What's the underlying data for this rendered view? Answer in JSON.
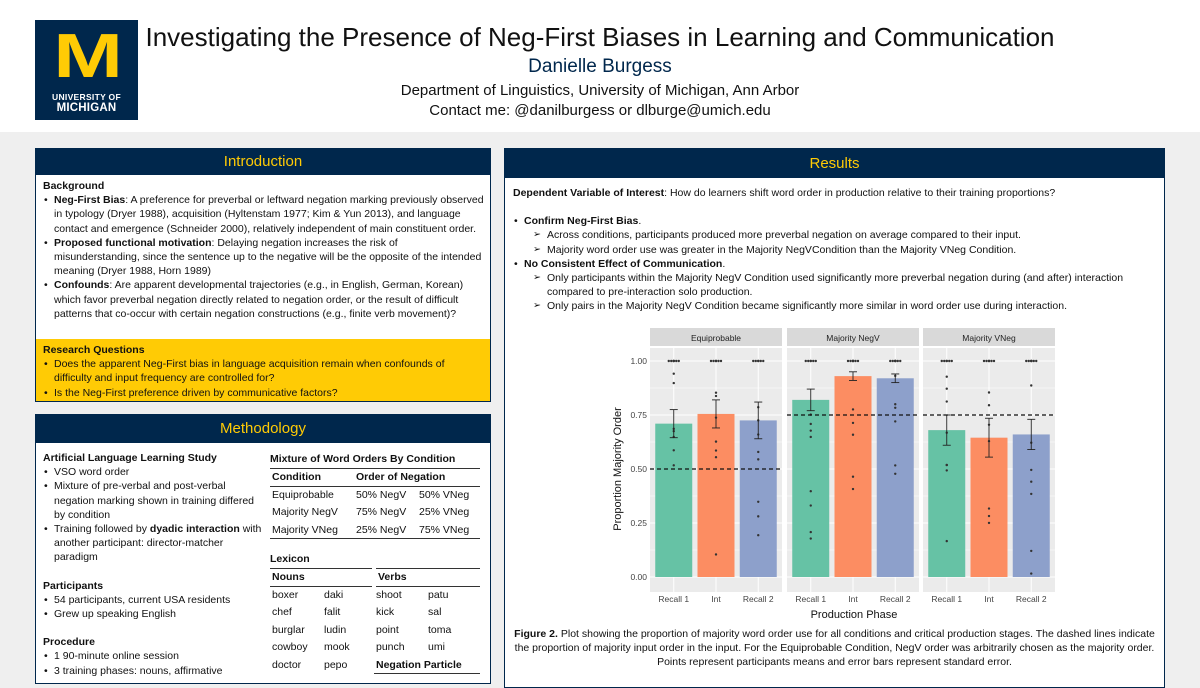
{
  "header": {
    "logo_top": "M",
    "logo_line1": "UNIVERSITY OF",
    "logo_line2": "MICHIGAN",
    "title": "Investigating the Presence of Neg-First Biases in Learning and Communication",
    "author": "Danielle Burgess",
    "department": "Department of Linguistics, University of Michigan, Ann Arbor",
    "contact": "Contact me: @danilburgess or dlburge@umich.edu"
  },
  "colors": {
    "navy": "#00274c",
    "maize": "#ffcb05",
    "green": "#66c2a5",
    "orange": "#fc8d62",
    "blue": "#8da0cb"
  },
  "intro": {
    "heading": "Introduction",
    "background_label": "Background",
    "bullets": [
      {
        "bold": "Neg-First Bias",
        "text": ": A preference for preverbal or leftward negation marking previously observed in typology (Dryer 1988), acquisition (Hyltenstam 1977; Kim & Yun 2013), and language contact and emergence (Schneider 2000), relatively independent of main constituent order."
      },
      {
        "bold": "Proposed functional motivation",
        "text": ": Delaying negation increases the risk of misunderstanding, since the sentence up to the negative will be the opposite of the intended meaning (Dryer 1988, Horn 1989)"
      },
      {
        "bold": "Confounds",
        "text": ": Are apparent developmental trajectories (e.g., in English, German, Korean) which favor preverbal negation directly related to negation order, or the result of difficult patterns that co-occur with certain negation constructions (e.g., finite verb movement)?"
      }
    ],
    "rq_label": "Research Questions",
    "rq_items": [
      "Does the apparent Neg-First bias in language acquisition remain when confounds of difficulty and input frequency are controlled for?",
      "Is the Neg-First preference driven by communicative factors?"
    ]
  },
  "method": {
    "heading": "Methodology",
    "study_label": "Artificial Language Learning Study",
    "study_items": [
      {
        "pre": "VSO word order",
        "bold": "",
        "post": ""
      },
      {
        "pre": "Mixture of pre-verbal and post-verbal negation marking shown in training differed by condition",
        "bold": "",
        "post": ""
      },
      {
        "pre": "Training followed by ",
        "bold": "dyadic interaction",
        "post": " with another participant: director-matcher paradigm"
      }
    ],
    "participants_label": "Participants",
    "participants_items": [
      "54 participants, current USA residents",
      "Grew up speaking English"
    ],
    "procedure_label": "Procedure",
    "procedure_items": [
      "1 90-minute online session",
      "3 training phases: nouns, affirmative"
    ],
    "mix_title": "Mixture of Word Orders By Condition",
    "mix_headers": [
      "Condition",
      "Order of Negation"
    ],
    "mix_rows": [
      [
        "Equiprobable",
        "50% NegV",
        "50% VNeg"
      ],
      [
        "Majority NegV",
        "75% NegV",
        "25% VNeg"
      ],
      [
        "Majority VNeg",
        "25% NegV",
        "75% VNeg"
      ]
    ],
    "lex_title": "Lexicon",
    "lex_nouns_label": "Nouns",
    "lex_verbs_label": "Verbs",
    "lex_rows": [
      [
        "boxer",
        "daki",
        "shoot",
        "patu"
      ],
      [
        "chef",
        "falit",
        "kick",
        "sal"
      ],
      [
        "burglar",
        "ludin",
        "point",
        "toma"
      ],
      [
        "cowboy",
        "mook",
        "punch",
        "umi"
      ]
    ],
    "lex_last": [
      "doctor",
      "pepo"
    ],
    "lex_neg_label": "Negation Particle"
  },
  "results": {
    "heading": "Results",
    "dv_label": "Dependent Variable of Interest",
    "dv_text": ": How do learners shift word order in production relative to their training proportions?",
    "confirm_label": "Confirm Neg-First Bias",
    "confirm_items": [
      "Across conditions, participants produced more preverbal negation on average compared to their input.",
      "Majority word order use was greater in the Majority NegVCondition than the Majority VNeg Condition."
    ],
    "nocons_label": "No Consistent Effect of Communication",
    "nocons_items": [
      "Only participants within the Majority NegV Condition used significantly more preverbal negation during (and after) interaction compared to pre-interaction solo production.",
      "Only pairs in the Majority NegV Condition became significantly more similar in word order use during interaction."
    ],
    "caption_label": "Figure 2.",
    "caption_text": " Plot showing the proportion of majority word order use for all conditions and critical production stages. The dashed lines indicate the proportion of majority input order in the input. For the Equiprobable Condition, NegV order was arbitrarily chosen as the majority order. Points represent participants means and error bars represent standard error."
  },
  "chart_data": {
    "type": "bar",
    "facets": [
      "Equiprobable",
      "Majority NegV",
      "Majority VNeg"
    ],
    "categories": [
      "Recall 1",
      "Int",
      "Recall 2"
    ],
    "series": [
      {
        "name": "Equiprobable",
        "values": [
          0.71,
          0.755,
          0.725
        ],
        "se": [
          0.065,
          0.065,
          0.085
        ],
        "input_line": 0.5
      },
      {
        "name": "Majority NegV",
        "values": [
          0.82,
          0.93,
          0.92
        ],
        "se": [
          0.05,
          0.02,
          0.02
        ],
        "input_line": 0.75
      },
      {
        "name": "Majority VNeg",
        "values": [
          0.68,
          0.645,
          0.66
        ],
        "se": [
          0.07,
          0.09,
          0.07
        ],
        "input_line": 0.75
      }
    ],
    "xlabel": "Production Phase",
    "ylabel": "Proportion Majority Order",
    "yticks": [
      "0.00",
      "0.25",
      "0.50",
      "0.75",
      "1.00"
    ],
    "ylim": [
      0,
      1
    ]
  }
}
